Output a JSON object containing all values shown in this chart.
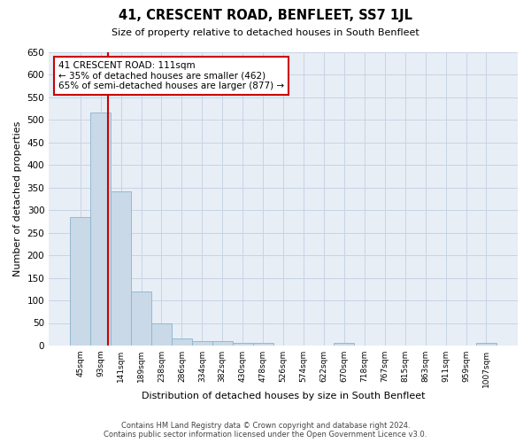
{
  "title": "41, CRESCENT ROAD, BENFLEET, SS7 1JL",
  "subtitle": "Size of property relative to detached houses in South Benfleet",
  "xlabel": "Distribution of detached houses by size in South Benfleet",
  "ylabel": "Number of detached properties",
  "footnote1": "Contains HM Land Registry data © Crown copyright and database right 2024.",
  "footnote2": "Contains public sector information licensed under the Open Government Licence v3.0.",
  "bar_labels": [
    "45sqm",
    "93sqm",
    "141sqm",
    "189sqm",
    "238sqm",
    "286sqm",
    "334sqm",
    "382sqm",
    "430sqm",
    "478sqm",
    "526sqm",
    "574sqm",
    "622sqm",
    "670sqm",
    "718sqm",
    "767sqm",
    "815sqm",
    "863sqm",
    "911sqm",
    "959sqm",
    "1007sqm"
  ],
  "bar_values": [
    284,
    517,
    342,
    120,
    49,
    16,
    10,
    10,
    6,
    5,
    0,
    0,
    0,
    5,
    0,
    0,
    0,
    0,
    0,
    0,
    5
  ],
  "bar_color": "#c9d9e8",
  "bar_edgecolor": "#8ab4cc",
  "grid_color": "#c8d4e4",
  "background_color": "#e8eef6",
  "ylim": [
    0,
    650
  ],
  "yticks": [
    0,
    50,
    100,
    150,
    200,
    250,
    300,
    350,
    400,
    450,
    500,
    550,
    600,
    650
  ],
  "vline_color": "#cc0000",
  "vline_x": 1.375,
  "annotation_text": "41 CRESCENT ROAD: 111sqm\n← 35% of detached houses are smaller (462)\n65% of semi-detached houses are larger (877) →",
  "annotation_box_edgecolor": "#cc0000"
}
